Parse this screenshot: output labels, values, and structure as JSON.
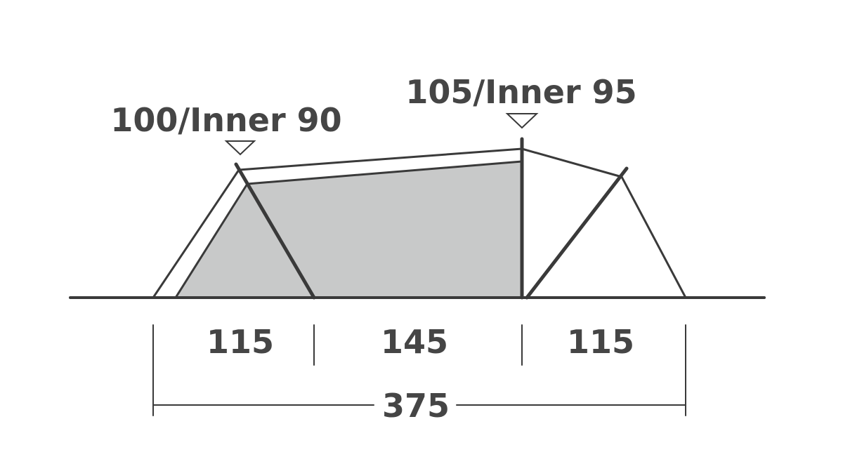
{
  "colors": {
    "line": "#3a3a3a",
    "inner_fill": "#c8c9c9",
    "text": "#454545"
  },
  "heights": {
    "left": {
      "label": "100/Inner 90",
      "outer": 100,
      "inner": 90
    },
    "center": {
      "label": "105/Inner 95",
      "outer": 105,
      "inner": 95
    }
  },
  "dimensions": {
    "segments": [
      {
        "label": "115",
        "value": 115
      },
      {
        "label": "145",
        "value": 145
      },
      {
        "label": "115",
        "value": 115
      }
    ],
    "total": {
      "label": "375",
      "value": 375
    }
  }
}
